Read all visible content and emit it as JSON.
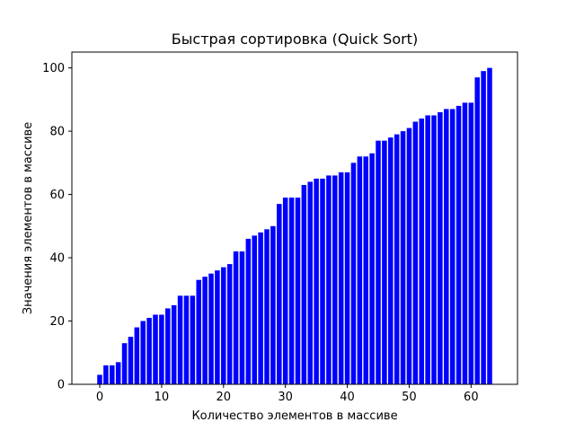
{
  "chart_data": {
    "type": "bar",
    "title": "Быстрая сортировка (Quick Sort)",
    "xlabel": "Количество элементов в массиве",
    "ylabel": "Значения элементов в массиве",
    "x": [
      0,
      1,
      2,
      3,
      4,
      5,
      6,
      7,
      8,
      9,
      10,
      11,
      12,
      13,
      14,
      15,
      16,
      17,
      18,
      19,
      20,
      21,
      22,
      23,
      24,
      25,
      26,
      27,
      28,
      29,
      30,
      31,
      32,
      33,
      34,
      35,
      36,
      37,
      38,
      39,
      40,
      41,
      42,
      43,
      44,
      45,
      46,
      47,
      48,
      49,
      50,
      51,
      52,
      53,
      54,
      55,
      56,
      57,
      58,
      59,
      60,
      61,
      62,
      63
    ],
    "values": [
      3,
      6,
      6,
      7,
      13,
      15,
      18,
      20,
      21,
      22,
      22,
      24,
      25,
      28,
      28,
      28,
      33,
      34,
      35,
      36,
      37,
      38,
      42,
      42,
      46,
      47,
      48,
      49,
      50,
      57,
      59,
      59,
      59,
      63,
      64,
      65,
      65,
      66,
      66,
      67,
      67,
      70,
      72,
      72,
      73,
      77,
      77,
      78,
      79,
      80,
      81,
      83,
      84,
      85,
      85,
      86,
      87,
      87,
      88,
      89,
      89,
      97,
      99,
      100
    ],
    "xlim": [
      -4.5,
      67.5
    ],
    "ylim": [
      0,
      105
    ],
    "xticks": [
      0,
      10,
      20,
      30,
      40,
      50,
      60
    ],
    "yticks": [
      0,
      20,
      40,
      60,
      80,
      100
    ],
    "grid": false,
    "bar_color": "#0000ff"
  }
}
